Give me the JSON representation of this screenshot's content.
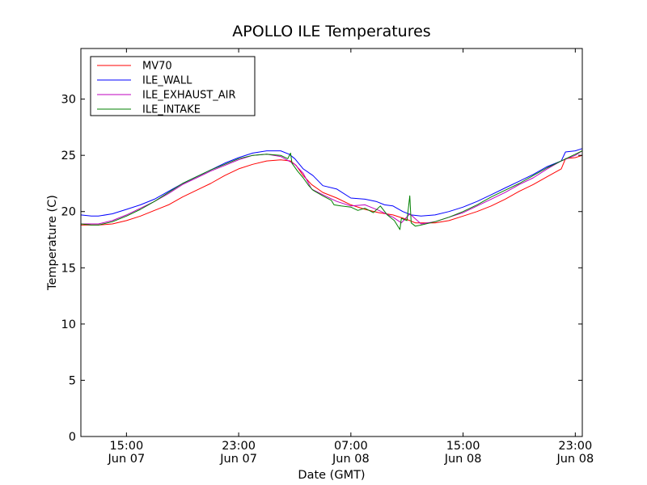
{
  "chart_data": {
    "type": "line",
    "title": "APOLLO ILE Temperatures",
    "xlabel": "Date (GMT)",
    "ylabel": "Temperature (C)",
    "x_unit": "hours since Jun 07 00:00 GMT",
    "xlim": [
      11.75,
      47.5
    ],
    "ylim": [
      0,
      34.5
    ],
    "y_ticks": [
      0,
      5,
      10,
      15,
      20,
      25,
      30
    ],
    "x_ticks": [
      {
        "x": 15,
        "line1": "15:00",
        "line2": "Jun 07"
      },
      {
        "x": 23,
        "line1": "23:00",
        "line2": "Jun 07"
      },
      {
        "x": 31,
        "line1": "07:00",
        "line2": "Jun 08"
      },
      {
        "x": 39,
        "line1": "15:00",
        "line2": "Jun 08"
      },
      {
        "x": 47,
        "line1": "23:00",
        "line2": "Jun 08"
      }
    ],
    "legend_position": "top-left",
    "series": [
      {
        "name": "MV70",
        "color": "#ff0000",
        "points": [
          [
            11.75,
            18.8
          ],
          [
            13,
            18.8
          ],
          [
            14,
            18.9
          ],
          [
            15,
            19.2
          ],
          [
            16,
            19.6
          ],
          [
            17,
            20.1
          ],
          [
            18,
            20.6
          ],
          [
            19,
            21.3
          ],
          [
            20,
            21.9
          ],
          [
            21,
            22.5
          ],
          [
            22,
            23.2
          ],
          [
            23,
            23.8
          ],
          [
            24,
            24.2
          ],
          [
            25,
            24.5
          ],
          [
            26,
            24.6
          ],
          [
            26.7,
            24.5
          ],
          [
            27.1,
            24.1
          ],
          [
            27.6,
            23.2
          ],
          [
            28.2,
            22.4
          ],
          [
            29,
            21.7
          ],
          [
            30,
            21.2
          ],
          [
            31,
            20.6
          ],
          [
            32,
            20.2
          ],
          [
            33,
            19.9
          ],
          [
            34,
            19.7
          ],
          [
            35,
            19.3
          ],
          [
            35.6,
            19.0
          ],
          [
            36,
            19.0
          ],
          [
            37,
            19.0
          ],
          [
            38,
            19.2
          ],
          [
            39,
            19.6
          ],
          [
            40,
            20.0
          ],
          [
            41,
            20.5
          ],
          [
            42,
            21.1
          ],
          [
            43,
            21.8
          ],
          [
            44,
            22.4
          ],
          [
            45,
            23.1
          ],
          [
            46,
            23.8
          ],
          [
            46.3,
            24.7
          ],
          [
            47,
            24.8
          ],
          [
            47.5,
            25.0
          ]
        ]
      },
      {
        "name": "ILE_WALL",
        "color": "#0000ff",
        "points": [
          [
            11.75,
            19.7
          ],
          [
            12.5,
            19.6
          ],
          [
            13,
            19.6
          ],
          [
            14,
            19.8
          ],
          [
            15,
            20.2
          ],
          [
            16,
            20.6
          ],
          [
            17,
            21.1
          ],
          [
            18,
            21.8
          ],
          [
            19,
            22.5
          ],
          [
            20,
            23.1
          ],
          [
            21,
            23.7
          ],
          [
            22,
            24.3
          ],
          [
            23,
            24.8
          ],
          [
            24,
            25.2
          ],
          [
            25,
            25.4
          ],
          [
            26,
            25.4
          ],
          [
            26.6,
            25.1
          ],
          [
            27,
            24.7
          ],
          [
            27.6,
            23.8
          ],
          [
            28.3,
            23.2
          ],
          [
            29,
            22.3
          ],
          [
            30,
            22.0
          ],
          [
            31,
            21.2
          ],
          [
            32,
            21.1
          ],
          [
            32.8,
            20.9
          ],
          [
            33.4,
            20.6
          ],
          [
            34,
            20.5
          ],
          [
            34.7,
            20.0
          ],
          [
            35.3,
            19.7
          ],
          [
            36,
            19.6
          ],
          [
            37,
            19.7
          ],
          [
            38,
            20.0
          ],
          [
            39,
            20.4
          ],
          [
            40,
            20.9
          ],
          [
            41,
            21.5
          ],
          [
            42,
            22.1
          ],
          [
            43,
            22.7
          ],
          [
            44,
            23.3
          ],
          [
            45,
            24.0
          ],
          [
            46,
            24.5
          ],
          [
            46.3,
            25.3
          ],
          [
            47,
            25.4
          ],
          [
            47.5,
            25.6
          ]
        ]
      },
      {
        "name": "ILE_EXHAUST_AIR",
        "color": "#bf00bf",
        "points": [
          [
            11.75,
            18.9
          ],
          [
            13,
            18.9
          ],
          [
            14,
            19.2
          ],
          [
            15,
            19.7
          ],
          [
            16,
            20.3
          ],
          [
            17,
            20.9
          ],
          [
            18,
            21.6
          ],
          [
            19,
            22.4
          ],
          [
            20,
            23.0
          ],
          [
            21,
            23.6
          ],
          [
            22,
            24.1
          ],
          [
            23,
            24.6
          ],
          [
            24,
            25.0
          ],
          [
            25,
            25.1
          ],
          [
            26,
            24.9
          ],
          [
            27,
            24.2
          ],
          [
            27.6,
            23.4
          ],
          [
            28.2,
            22.0
          ],
          [
            29,
            21.5
          ],
          [
            30,
            20.9
          ],
          [
            31,
            20.5
          ],
          [
            32,
            20.6
          ],
          [
            33,
            20.1
          ],
          [
            34,
            19.5
          ],
          [
            34.6,
            19.0
          ],
          [
            35.2,
            19.8
          ],
          [
            36,
            18.9
          ],
          [
            37,
            19.1
          ],
          [
            38,
            19.5
          ],
          [
            39,
            19.9
          ],
          [
            40,
            20.5
          ],
          [
            41,
            21.1
          ],
          [
            42,
            21.7
          ],
          [
            43,
            22.4
          ],
          [
            44,
            23.0
          ],
          [
            45,
            23.8
          ],
          [
            46,
            24.5
          ],
          [
            47,
            25.0
          ],
          [
            47.5,
            25.4
          ]
        ]
      },
      {
        "name": "ILE_INTAKE",
        "color": "#008000",
        "points": [
          [
            11.75,
            18.9
          ],
          [
            12.5,
            18.8
          ],
          [
            13,
            18.8
          ],
          [
            14,
            19.1
          ],
          [
            15,
            19.6
          ],
          [
            16,
            20.2
          ],
          [
            17,
            20.9
          ],
          [
            18,
            21.7
          ],
          [
            19,
            22.5
          ],
          [
            20,
            23.1
          ],
          [
            21,
            23.7
          ],
          [
            22,
            24.2
          ],
          [
            23,
            24.7
          ],
          [
            24,
            25.0
          ],
          [
            25,
            25.1
          ],
          [
            26,
            25.0
          ],
          [
            26.5,
            24.7
          ],
          [
            26.7,
            25.2
          ],
          [
            26.8,
            24.3
          ],
          [
            27.2,
            23.6
          ],
          [
            27.6,
            23.0
          ],
          [
            28,
            22.3
          ],
          [
            28.3,
            21.9
          ],
          [
            29,
            21.4
          ],
          [
            29.6,
            21.0
          ],
          [
            29.8,
            20.6
          ],
          [
            30.3,
            20.5
          ],
          [
            31,
            20.4
          ],
          [
            31.5,
            20.1
          ],
          [
            32,
            20.3
          ],
          [
            32.6,
            19.9
          ],
          [
            33.1,
            20.5
          ],
          [
            33.6,
            19.7
          ],
          [
            34.1,
            19.2
          ],
          [
            34.5,
            18.4
          ],
          [
            34.6,
            19.4
          ],
          [
            35,
            19.2
          ],
          [
            35.2,
            21.4
          ],
          [
            35.3,
            19.0
          ],
          [
            35.6,
            18.7
          ],
          [
            36,
            18.8
          ],
          [
            37,
            19.1
          ],
          [
            38,
            19.5
          ],
          [
            39,
            20.0
          ],
          [
            40,
            20.6
          ],
          [
            41,
            21.3
          ],
          [
            42,
            21.9
          ],
          [
            43,
            22.5
          ],
          [
            44,
            23.2
          ],
          [
            45,
            23.9
          ],
          [
            46,
            24.5
          ],
          [
            47,
            25.1
          ],
          [
            47.5,
            25.4
          ]
        ]
      }
    ]
  }
}
